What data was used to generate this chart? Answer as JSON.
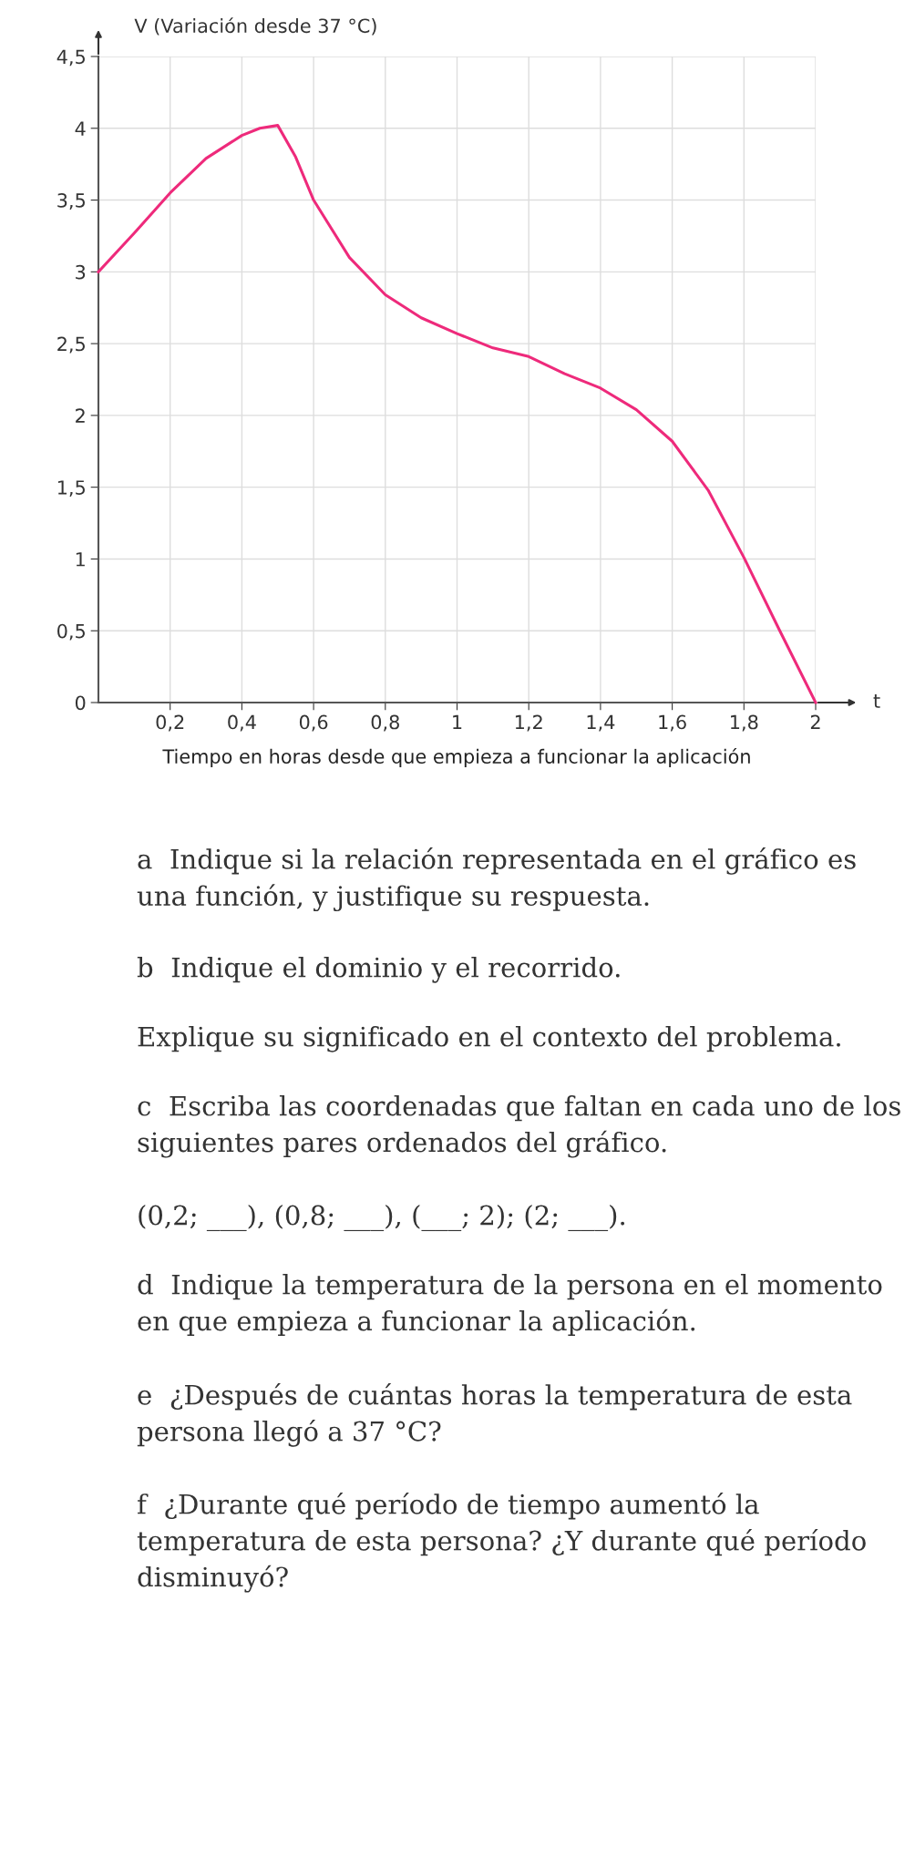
{
  "chart_data": {
    "type": "line",
    "ylabel": "V (Variación desde 37 °C)",
    "xlabel": "Tiempo en horas desde que empieza a funcionar la aplicación",
    "x": [
      0,
      0.1,
      0.2,
      0.3,
      0.4,
      0.45,
      0.5,
      0.55,
      0.6,
      0.7,
      0.8,
      0.9,
      1.0,
      1.1,
      1.2,
      1.3,
      1.4,
      1.5,
      1.6,
      1.7,
      1.8,
      1.9,
      2.0
    ],
    "series": [
      {
        "color": "#ee2a7b",
        "values": [
          3.0,
          3.27,
          3.55,
          3.79,
          3.95,
          4.0,
          4.02,
          3.8,
          3.5,
          3.1,
          2.84,
          2.68,
          2.57,
          2.47,
          2.41,
          2.29,
          2.19,
          2.04,
          1.82,
          1.48,
          1.01,
          0.5,
          0.0
        ]
      }
    ],
    "xlim": [
      0,
      2
    ],
    "ylim": [
      0,
      4.5
    ],
    "xticks": [
      {
        "value": 0.2,
        "label": "0,2"
      },
      {
        "value": 0.4,
        "label": "0,4"
      },
      {
        "value": 0.6,
        "label": "0,6"
      },
      {
        "value": 0.8,
        "label": "0,8"
      },
      1,
      {
        "value": 1.2,
        "label": "1,2"
      },
      {
        "value": 1.4,
        "label": "1,4"
      },
      {
        "value": 1.6,
        "label": "1,6"
      },
      {
        "value": 1.8,
        "label": "1,8"
      },
      2
    ],
    "yticks": [
      0,
      {
        "value": 0.5,
        "label": "0,5"
      },
      1,
      {
        "value": 1.5,
        "label": "1,5"
      },
      2,
      {
        "value": 2.5,
        "label": "2,5"
      },
      3,
      {
        "value": 3.5,
        "label": "3,5"
      },
      4,
      {
        "value": 4.5,
        "label": "4,5"
      }
    ],
    "grid": true,
    "marker": "none",
    "line_style": "solid",
    "annotations": [
      "t",
      "a  Indique si la relación representada en el gráfico es una función, y justifique su respuesta.",
      "b  Indique el dominio y el recorrido.",
      "Explique su significado en el contexto del problema.",
      "c  Escriba las coordenadas que faltan en cada uno de los siguientes pares ordenados del gráfico.",
      "(0,2; ___), (0,8; ___), (___; 2); (2; ___).",
      "d  Indique la temperatura de la persona en el momento en que empieza a funcionar la aplicación.",
      "e  ¿Después de cuántas horas la temperatura de esta persona llegó a 37 °C?",
      "f  ¿Durante qué período de tiempo aumentó la temperatura de esta persona? ¿Y durante qué período disminuyó?"
    ]
  }
}
